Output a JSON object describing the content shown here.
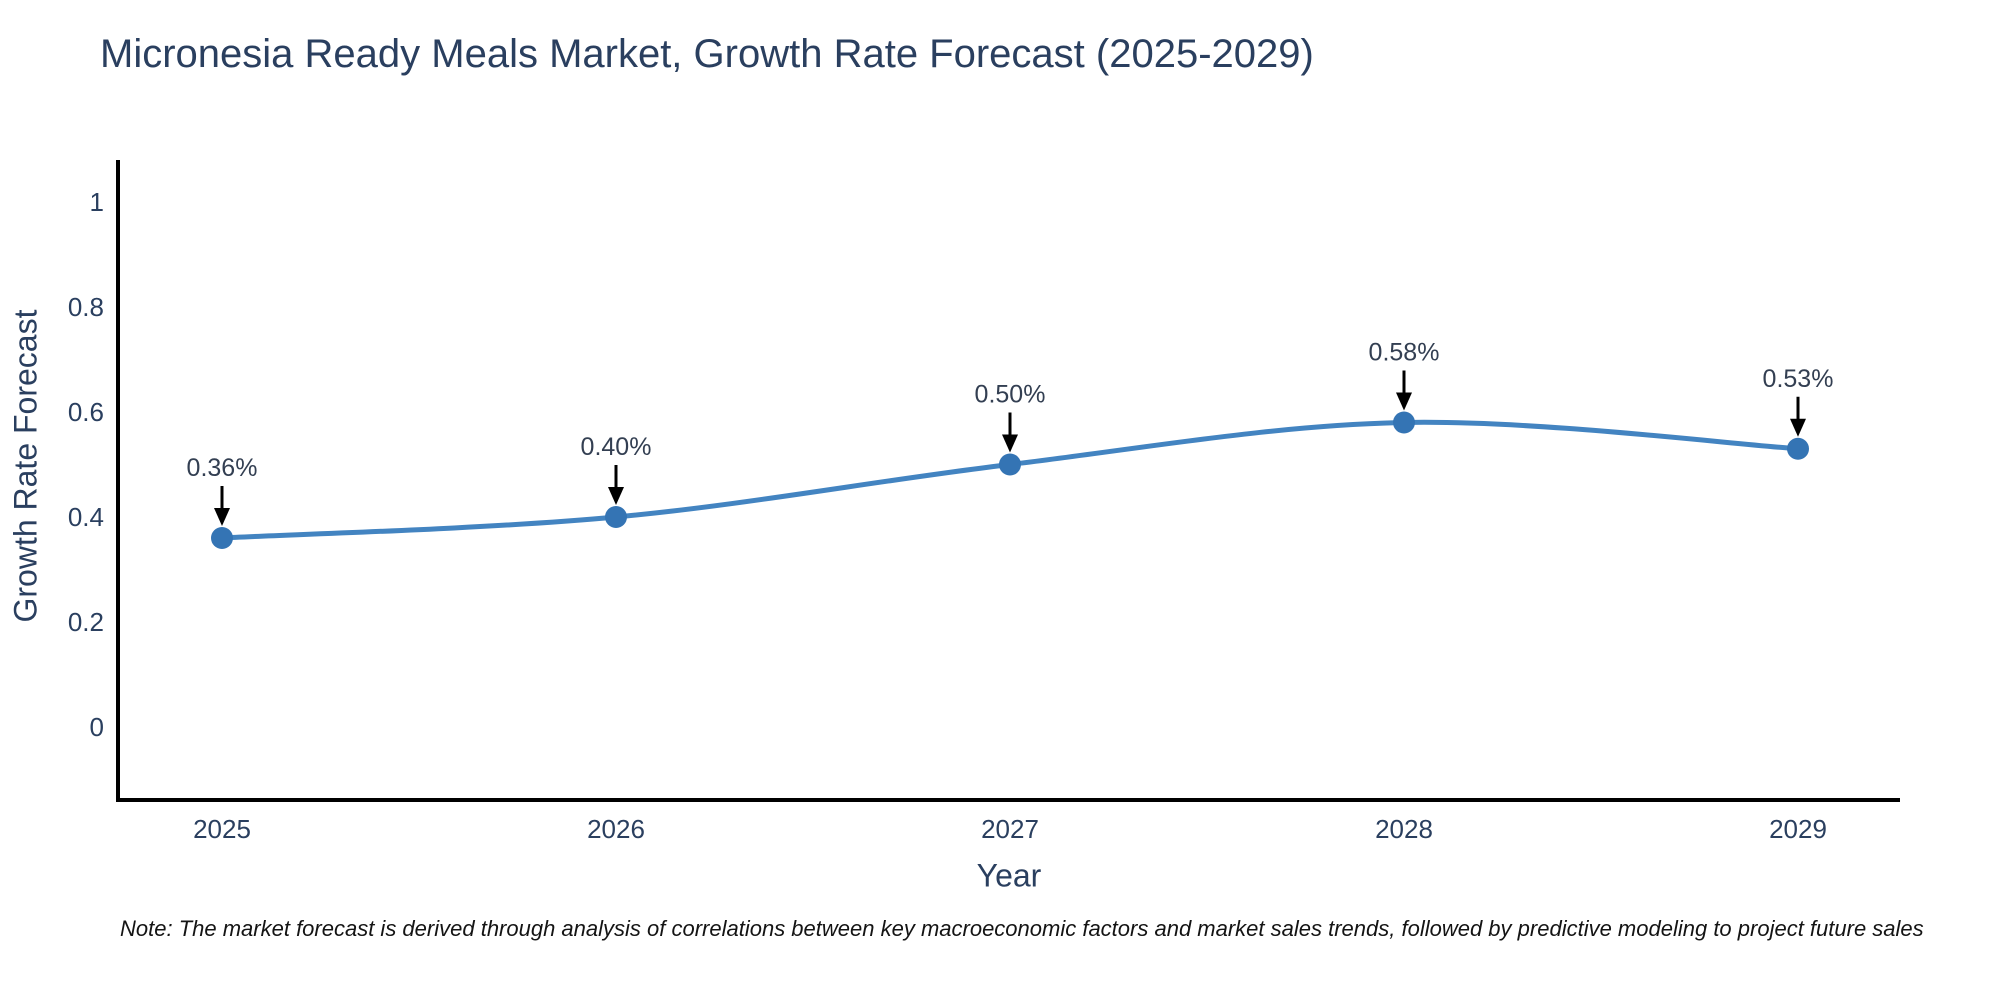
{
  "chart": {
    "note": "Note: The market forecast is derived through analysis of correlations between key macroeconomic factors and market sales trends, followed by predictive modeling to project future sales",
    "colors": {
      "line": "#4384c1",
      "marker": "#3474b4",
      "axis": "#000000",
      "tick_text": "#2a3f5f",
      "annotation_text": "#333f52",
      "arrow": "#000000",
      "background": "#ffffff"
    }
  },
  "chart_data": {
    "type": "line",
    "title": "Micronesia Ready Meals Market, Growth Rate Forecast (2025-2029)",
    "xlabel": "Year",
    "ylabel": "Growth Rate Forecast",
    "x": [
      2025,
      2026,
      2027,
      2028,
      2029
    ],
    "series": [
      {
        "name": "Growth Rate Forecast",
        "values": [
          0.36,
          0.4,
          0.5,
          0.58,
          0.53
        ]
      }
    ],
    "point_labels": [
      "0.36%",
      "0.40%",
      "0.50%",
      "0.58%",
      "0.53%"
    ],
    "yticks": [
      0,
      0.2,
      0.4,
      0.6,
      0.8,
      1
    ],
    "ytick_labels": [
      "0",
      "0.2",
      "0.4",
      "0.6",
      "0.8",
      "1"
    ],
    "ylim": [
      -0.14,
      1.08
    ],
    "xlim": [
      2024.74,
      2029.26
    ],
    "line_shape": "spline",
    "grid": false,
    "legend": "none"
  }
}
